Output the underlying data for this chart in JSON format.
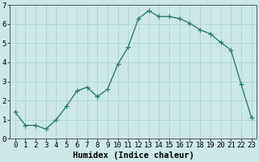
{
  "x": [
    0,
    1,
    2,
    3,
    4,
    5,
    6,
    7,
    8,
    9,
    10,
    11,
    12,
    13,
    14,
    15,
    16,
    17,
    18,
    19,
    20,
    21,
    22,
    23
  ],
  "y": [
    1.4,
    0.7,
    0.7,
    0.5,
    1.0,
    1.7,
    2.5,
    2.7,
    2.2,
    2.6,
    3.9,
    4.8,
    6.3,
    6.7,
    6.4,
    6.4,
    6.3,
    6.05,
    5.7,
    5.5,
    5.05,
    4.65,
    2.85,
    1.1
  ],
  "line_color": "#2e7d6e",
  "marker": "+",
  "markersize": 4,
  "linewidth": 1.0,
  "bgcolor": "#cce8e8",
  "grid_color": "#aacfcf",
  "xlabel": "Humidex (Indice chaleur)",
  "xlabel_fontsize": 7.5,
  "tick_fontsize": 6.5,
  "ylim": [
    0,
    7
  ],
  "xlim": [
    -0.5,
    23.5
  ],
  "yticks": [
    0,
    1,
    2,
    3,
    4,
    5,
    6,
    7
  ],
  "xticks": [
    0,
    1,
    2,
    3,
    4,
    5,
    6,
    7,
    8,
    9,
    10,
    11,
    12,
    13,
    14,
    15,
    16,
    17,
    18,
    19,
    20,
    21,
    22,
    23
  ]
}
